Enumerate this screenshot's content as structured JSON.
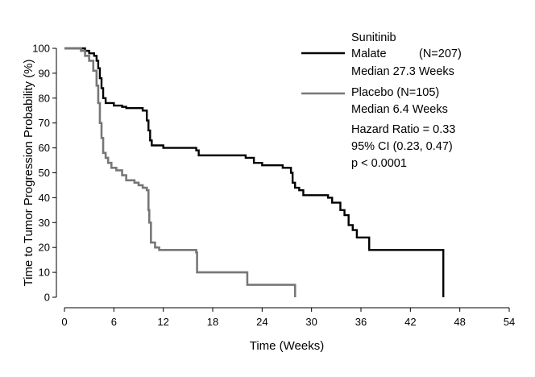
{
  "chart_data": {
    "type": "line",
    "subtype": "kaplan-meier-step",
    "xlabel": "Time (Weeks)",
    "ylabel": "Time to Tumor Progression Probability (%)",
    "xlim": [
      0,
      54
    ],
    "ylim": [
      0,
      100
    ],
    "xticks": [
      0,
      6,
      12,
      18,
      24,
      30,
      36,
      42,
      48,
      54
    ],
    "yticks": [
      0,
      10,
      20,
      30,
      40,
      50,
      60,
      70,
      80,
      90,
      100
    ],
    "grid": false,
    "legend_position": "top-right",
    "series": [
      {
        "name_line1": "Sunitinib",
        "name_line2": "Malate",
        "n_label": "(N=207)",
        "median_label": "Median 27.3 Weeks",
        "color": "#000000",
        "end": {
          "x": 46,
          "drop_to": 0
        },
        "points": [
          [
            0,
            100
          ],
          [
            1.5,
            100
          ],
          [
            2.5,
            99
          ],
          [
            3,
            98
          ],
          [
            3.6,
            97
          ],
          [
            3.9,
            95
          ],
          [
            4.1,
            92
          ],
          [
            4.3,
            88
          ],
          [
            4.5,
            84
          ],
          [
            4.7,
            80
          ],
          [
            5,
            78
          ],
          [
            6,
            77
          ],
          [
            7,
            76.5
          ],
          [
            7.5,
            76
          ],
          [
            9.5,
            75
          ],
          [
            10,
            71
          ],
          [
            10.2,
            67
          ],
          [
            10.4,
            63
          ],
          [
            10.6,
            61
          ],
          [
            12,
            60
          ],
          [
            16,
            59
          ],
          [
            16.3,
            57
          ],
          [
            22,
            56
          ],
          [
            23,
            54
          ],
          [
            24,
            53
          ],
          [
            26.5,
            52
          ],
          [
            27.5,
            50
          ],
          [
            27.7,
            46
          ],
          [
            28,
            44
          ],
          [
            28.5,
            43
          ],
          [
            29,
            41
          ],
          [
            32,
            40
          ],
          [
            32.5,
            38
          ],
          [
            33.5,
            35
          ],
          [
            34,
            33
          ],
          [
            34.5,
            29
          ],
          [
            35,
            27
          ],
          [
            35.5,
            24
          ],
          [
            37,
            19
          ],
          [
            40,
            19
          ],
          [
            46,
            19
          ]
        ]
      },
      {
        "name": "Placebo (N=105)",
        "median_label": "Median 6.4 Weeks",
        "color": "#777777",
        "end": {
          "x": 28,
          "drop_to": 0
        },
        "points": [
          [
            0,
            100
          ],
          [
            1.5,
            100
          ],
          [
            2,
            99
          ],
          [
            2.5,
            97
          ],
          [
            3,
            95
          ],
          [
            3.5,
            91
          ],
          [
            3.9,
            85
          ],
          [
            4.1,
            78
          ],
          [
            4.3,
            70
          ],
          [
            4.5,
            64
          ],
          [
            4.7,
            58
          ],
          [
            5,
            56
          ],
          [
            5.3,
            54
          ],
          [
            5.7,
            52
          ],
          [
            6.3,
            51
          ],
          [
            7,
            49
          ],
          [
            7.5,
            47
          ],
          [
            8.5,
            46
          ],
          [
            9,
            45
          ],
          [
            9.5,
            44
          ],
          [
            10,
            43
          ],
          [
            10.2,
            35
          ],
          [
            10.3,
            30
          ],
          [
            10.5,
            22
          ],
          [
            11,
            20
          ],
          [
            11.5,
            19
          ],
          [
            12,
            19
          ],
          [
            16,
            18
          ],
          [
            16.1,
            10
          ],
          [
            18,
            10
          ],
          [
            22,
            10
          ],
          [
            22.2,
            5
          ],
          [
            28,
            5
          ]
        ]
      }
    ],
    "annotations": {
      "hazard_ratio": "Hazard Ratio = 0.33",
      "ci": "95% CI (0.23, 0.47)",
      "p_value": "p < 0.0001"
    }
  }
}
